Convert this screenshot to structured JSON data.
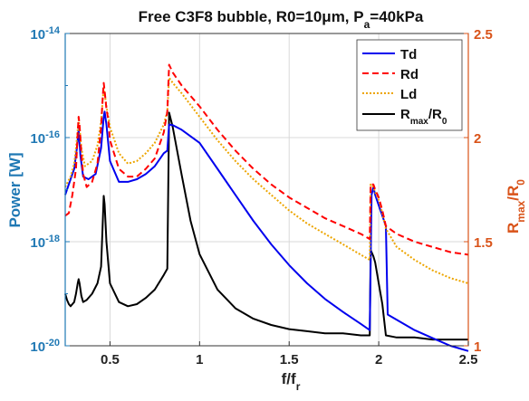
{
  "chart_data": {
    "type": "line",
    "title": {
      "main": "Free C3F8 bubble, R0=10",
      "mu": "μ",
      "unit": "m, P",
      "sub": "a",
      "tail": "=40kPa"
    },
    "xlabel": {
      "main": "f/f",
      "sub": "r"
    },
    "ylabel_left": "Power [W]",
    "ylabel_right": {
      "main": "R",
      "sub1": "max",
      "mid": "/R",
      "sub2": "0"
    },
    "xlim": [
      0.25,
      2.5
    ],
    "ylim_left": [
      -20,
      -14
    ],
    "ylim_left_scale": "log10",
    "ylim_right": [
      1,
      2.5
    ],
    "x_ticks": [
      0.5,
      1,
      1.5,
      2,
      2.5
    ],
    "x_tick_labels": [
      "0.5",
      "1",
      "1.5",
      "2",
      "2.5"
    ],
    "y_left_ticks": [
      -14,
      -16,
      -18,
      -20
    ],
    "y_left_tick_labels": [
      {
        "base": "10",
        "exp": "-14"
      },
      {
        "base": "10",
        "exp": "-16"
      },
      {
        "base": "10",
        "exp": "-18"
      },
      {
        "base": "10",
        "exp": "-20"
      }
    ],
    "y_right_ticks": [
      1,
      1.5,
      2,
      2.5
    ],
    "y_right_tick_labels": [
      "1",
      "1.5",
      "2",
      "2.5"
    ],
    "grid": true,
    "legend_position": "top-right",
    "legend": [
      {
        "name": "Td"
      },
      {
        "name": "Rd"
      },
      {
        "name": "Ld"
      },
      {
        "name": "R",
        "sub1": "max",
        "mid": "/R",
        "sub2": "0"
      }
    ],
    "colors": {
      "Td": "#0000ee",
      "Rd": "#ff0000",
      "Ld": "#eda500",
      "Rmax": "#000000",
      "left_axis": "#1f78b4",
      "right_axis": "#d95319",
      "grid": "#d9d9d9"
    },
    "series": [
      {
        "name": "Td",
        "axis": "left",
        "y_scale": "log10_exponent",
        "x": [
          0.25,
          0.28,
          0.3,
          0.315,
          0.325,
          0.335,
          0.35,
          0.38,
          0.42,
          0.45,
          0.465,
          0.47,
          0.48,
          0.5,
          0.55,
          0.6,
          0.65,
          0.7,
          0.75,
          0.8,
          0.82,
          0.83,
          0.85,
          0.9,
          1.0,
          1.1,
          1.2,
          1.3,
          1.4,
          1.5,
          1.6,
          1.7,
          1.8,
          1.9,
          1.95,
          1.96,
          1.97,
          1.98,
          2.0,
          2.02,
          2.04,
          2.05,
          2.1,
          2.2,
          2.3,
          2.4,
          2.5
        ],
        "y": [
          -17.1,
          -16.8,
          -16.6,
          -16.2,
          -15.85,
          -16.35,
          -16.75,
          -16.8,
          -16.7,
          -16.2,
          -15.6,
          -15.5,
          -15.75,
          -16.45,
          -16.85,
          -16.85,
          -16.8,
          -16.7,
          -16.55,
          -16.3,
          -16.25,
          -15.75,
          -15.76,
          -15.85,
          -16.1,
          -16.6,
          -17.1,
          -17.6,
          -18.05,
          -18.45,
          -18.8,
          -19.1,
          -19.35,
          -19.58,
          -19.7,
          -17.1,
          -16.95,
          -17.1,
          -17.3,
          -17.5,
          -17.7,
          -19.4,
          -19.5,
          -19.7,
          -19.85,
          -20.0,
          -20.1
        ]
      },
      {
        "name": "Rd",
        "axis": "left",
        "y_scale": "log10_exponent",
        "x": [
          0.25,
          0.27,
          0.29,
          0.31,
          0.32,
          0.325,
          0.33,
          0.34,
          0.35,
          0.37,
          0.4,
          0.43,
          0.45,
          0.46,
          0.465,
          0.47,
          0.48,
          0.49,
          0.5,
          0.55,
          0.6,
          0.65,
          0.7,
          0.75,
          0.8,
          0.82,
          0.83,
          0.85,
          0.9,
          1.0,
          1.1,
          1.2,
          1.3,
          1.4,
          1.5,
          1.6,
          1.7,
          1.8,
          1.9,
          1.95,
          1.955,
          1.97,
          1.98,
          2.0,
          2.02,
          2.04,
          2.1,
          2.2,
          2.3,
          2.4,
          2.5
        ],
        "y": [
          -17.5,
          -17.45,
          -17.1,
          -16.6,
          -15.9,
          -15.6,
          -15.75,
          -16.3,
          -16.7,
          -16.95,
          -16.85,
          -16.5,
          -15.8,
          -15.2,
          -14.95,
          -15.1,
          -15.45,
          -15.65,
          -16.05,
          -16.6,
          -16.75,
          -16.75,
          -16.6,
          -16.4,
          -15.9,
          -15.5,
          -14.6,
          -14.75,
          -15.0,
          -15.4,
          -15.85,
          -16.25,
          -16.6,
          -16.9,
          -17.15,
          -17.35,
          -17.55,
          -17.7,
          -17.85,
          -17.95,
          -16.9,
          -16.9,
          -17.0,
          -17.15,
          -17.4,
          -17.7,
          -17.85,
          -18.0,
          -18.1,
          -18.2,
          -18.25
        ]
      },
      {
        "name": "Ld",
        "axis": "left",
        "y_scale": "log10_exponent",
        "x": [
          0.25,
          0.28,
          0.3,
          0.31,
          0.32,
          0.325,
          0.33,
          0.34,
          0.36,
          0.4,
          0.43,
          0.45,
          0.46,
          0.465,
          0.47,
          0.48,
          0.5,
          0.55,
          0.6,
          0.65,
          0.7,
          0.75,
          0.8,
          0.82,
          0.83,
          0.85,
          0.9,
          1.0,
          1.1,
          1.2,
          1.3,
          1.4,
          1.5,
          1.6,
          1.7,
          1.8,
          1.9,
          1.95,
          1.955,
          1.97,
          1.98,
          2.0,
          2.02,
          2.04,
          2.1,
          2.2,
          2.3,
          2.4,
          2.5
        ],
        "y": [
          -16.95,
          -16.75,
          -16.5,
          -16.2,
          -15.85,
          -15.65,
          -15.8,
          -16.2,
          -16.55,
          -16.45,
          -16.15,
          -15.7,
          -15.25,
          -15.05,
          -15.15,
          -15.4,
          -15.8,
          -16.3,
          -16.5,
          -16.45,
          -16.3,
          -16.1,
          -15.75,
          -15.5,
          -14.85,
          -14.95,
          -15.15,
          -15.6,
          -16.05,
          -16.45,
          -16.8,
          -17.1,
          -17.4,
          -17.65,
          -17.85,
          -18.05,
          -18.25,
          -18.35,
          -16.9,
          -16.95,
          -17.05,
          -17.2,
          -17.45,
          -17.75,
          -18.1,
          -18.35,
          -18.55,
          -18.7,
          -18.8
        ]
      },
      {
        "name": "Rmax/R0",
        "axis": "right",
        "x": [
          0.25,
          0.26,
          0.27,
          0.28,
          0.29,
          0.3,
          0.31,
          0.32,
          0.325,
          0.33,
          0.34,
          0.35,
          0.37,
          0.4,
          0.43,
          0.45,
          0.46,
          0.465,
          0.47,
          0.48,
          0.5,
          0.55,
          0.6,
          0.65,
          0.7,
          0.75,
          0.8,
          0.82,
          0.83,
          0.85,
          0.9,
          0.95,
          1.0,
          1.1,
          1.2,
          1.3,
          1.4,
          1.5,
          1.6,
          1.7,
          1.8,
          1.9,
          1.95,
          1.955,
          1.97,
          1.98,
          2.0,
          2.02,
          2.04,
          2.1,
          2.2,
          2.3,
          2.4,
          2.5
        ],
        "y": [
          1.25,
          1.22,
          1.2,
          1.19,
          1.2,
          1.21,
          1.25,
          1.3,
          1.32,
          1.3,
          1.24,
          1.21,
          1.22,
          1.25,
          1.3,
          1.38,
          1.6,
          1.72,
          1.68,
          1.5,
          1.3,
          1.21,
          1.19,
          1.2,
          1.23,
          1.27,
          1.34,
          1.37,
          2.12,
          2.05,
          1.82,
          1.6,
          1.44,
          1.27,
          1.18,
          1.13,
          1.1,
          1.08,
          1.07,
          1.06,
          1.06,
          1.05,
          1.05,
          1.46,
          1.43,
          1.4,
          1.3,
          1.2,
          1.05,
          1.04,
          1.04,
          1.03,
          1.03,
          1.03
        ]
      }
    ]
  }
}
